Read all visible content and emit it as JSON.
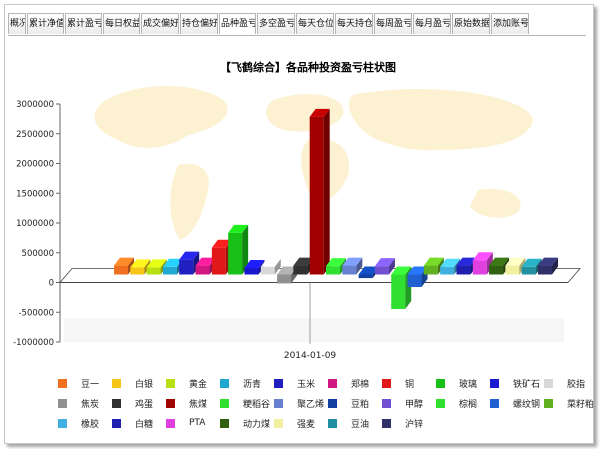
{
  "tabs": [
    {
      "label": "概况",
      "width": 18
    },
    {
      "label": "累计净值",
      "width": 37
    },
    {
      "label": "累计盈亏",
      "width": 37
    },
    {
      "label": "每日权益",
      "width": 37
    },
    {
      "label": "成交偏好",
      "width": 38
    },
    {
      "label": "持仓偏好",
      "width": 38
    },
    {
      "label": "品种盈亏",
      "width": 37,
      "active": true
    },
    {
      "label": "多空盈亏",
      "width": 38
    },
    {
      "label": "每天仓位",
      "width": 38
    },
    {
      "label": "每天持仓",
      "width": 38
    },
    {
      "label": "每周盈亏",
      "width": 38
    },
    {
      "label": "每月盈亏",
      "width": 38
    },
    {
      "label": "原始数据",
      "width": 38
    },
    {
      "label": "添加账号",
      "width": 38
    }
  ],
  "chart_data": {
    "type": "bar",
    "title": "【飞鹤综合】各品种投资盈亏柱状图",
    "xlabel": "2014-01-09",
    "ylabel": "",
    "ylim": [
      -1000000,
      3000000
    ],
    "yticks": [
      "3000000",
      "2500000",
      "2000000",
      "1500000",
      "1000000",
      "500000",
      "0",
      "-500000",
      "-1000000"
    ],
    "series": [
      {
        "name": "豆一",
        "value": 150000,
        "color": "#f07020"
      },
      {
        "name": "白银",
        "value": 120000,
        "color": "#f5c518"
      },
      {
        "name": "黄金",
        "value": 120000,
        "color": "#b8e010"
      },
      {
        "name": "沥青",
        "value": 130000,
        "color": "#20a8d0"
      },
      {
        "name": "玉米",
        "value": 250000,
        "color": "#2020c0"
      },
      {
        "name": "郑棉",
        "value": 150000,
        "color": "#d01880"
      },
      {
        "name": "铜",
        "value": 450000,
        "color": "#e01818"
      },
      {
        "name": "玻璃",
        "value": 700000,
        "color": "#18c018"
      },
      {
        "name": "铁矿石",
        "value": 110000,
        "color": "#1818d0"
      },
      {
        "name": "胶指",
        "value": 130000,
        "color": "#d8d8d8"
      },
      {
        "name": "焦炭",
        "value": -150000,
        "color": "#909090"
      },
      {
        "name": "鸡蛋",
        "value": 150000,
        "color": "#303030"
      },
      {
        "name": "焦煤",
        "value": 2650000,
        "color": "#a00000"
      },
      {
        "name": "粳稻谷",
        "value": 140000,
        "color": "#30e030"
      },
      {
        "name": "聚乙烯",
        "value": 150000,
        "color": "#6880d0"
      },
      {
        "name": "豆粕",
        "value": -60000,
        "color": "#1040a0"
      },
      {
        "name": "甲醇",
        "value": 140000,
        "color": "#7050d0"
      },
      {
        "name": "棕榈",
        "value": -580000,
        "color": "#30e030"
      },
      {
        "name": "螺纹钢",
        "value": -210000,
        "color": "#2060d0"
      },
      {
        "name": "菜籽粕",
        "value": 150000,
        "color": "#60b020"
      },
      {
        "name": "橡胶",
        "value": 130000,
        "color": "#40b0e0"
      },
      {
        "name": "白糖",
        "value": 150000,
        "color": "#2020b0"
      },
      {
        "name": "PTA",
        "value": 240000,
        "color": "#e040e0"
      },
      {
        "name": "动力煤",
        "value": 150000,
        "color": "#306010"
      },
      {
        "name": "强麦",
        "value": 150000,
        "color": "#f0f0a0"
      },
      {
        "name": "豆油",
        "value": 130000,
        "color": "#2090a0"
      },
      {
        "name": "沪锌",
        "value": 150000,
        "color": "#303068"
      }
    ]
  }
}
